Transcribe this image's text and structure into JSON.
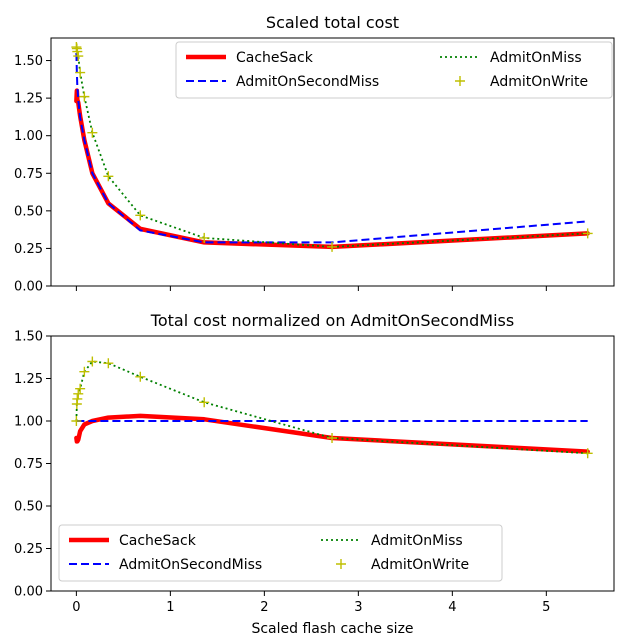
{
  "colors": {
    "cachesack": "#ff0000",
    "admitonsecondmiss": "#0000ff",
    "admitonmiss": "#008000",
    "admitonwrite": "#bfbf00"
  },
  "xlabel": "Scaled flash cache size",
  "chart_data": [
    {
      "type": "line",
      "title": "Scaled total cost",
      "xlabel": "",
      "ylabel": "",
      "xlim": [
        -0.27,
        5.72
      ],
      "ylim": [
        0,
        1.65
      ],
      "x_ticks": [
        0,
        1,
        2,
        3,
        4,
        5
      ],
      "y_ticks": [
        "0.00",
        "0.25",
        "0.50",
        "0.75",
        "1.00",
        "1.25",
        "1.50"
      ],
      "legend": {
        "position": "top-right",
        "columns": 2
      },
      "series": [
        {
          "name": "CacheSack",
          "style": "solid-thick",
          "x": [
            0,
            0.005,
            0.01,
            0.02,
            0.04,
            0.085,
            0.17,
            0.34,
            0.68,
            1.36,
            2.72,
            5.44
          ],
          "y": [
            1.23,
            1.3,
            1.24,
            1.22,
            1.13,
            0.97,
            0.75,
            0.55,
            0.38,
            0.29,
            0.26,
            0.35
          ]
        },
        {
          "name": "AdmitOnSecondMiss",
          "style": "dashed",
          "x": [
            0,
            0.005,
            0.01,
            0.02,
            0.04,
            0.085,
            0.17,
            0.34,
            0.68,
            1.36,
            2.72,
            5.44
          ],
          "y": [
            1.55,
            1.42,
            1.33,
            1.24,
            1.12,
            0.97,
            0.75,
            0.55,
            0.37,
            0.29,
            0.29,
            0.43
          ]
        },
        {
          "name": "AdmitOnMiss",
          "style": "dotted",
          "x": [
            0,
            0.005,
            0.01,
            0.02,
            0.04,
            0.085,
            0.17,
            0.34,
            0.68,
            1.36,
            2.72,
            5.44
          ],
          "y": [
            1.59,
            1.58,
            1.56,
            1.53,
            1.42,
            1.26,
            1.02,
            0.73,
            0.47,
            0.32,
            0.26,
            0.35
          ]
        },
        {
          "name": "AdmitOnWrite",
          "style": "plus-markers",
          "x": [
            0,
            0.005,
            0.01,
            0.02,
            0.04,
            0.085,
            0.17,
            0.34,
            0.68,
            1.36,
            2.72,
            5.44
          ],
          "y": [
            1.59,
            1.58,
            1.56,
            1.53,
            1.42,
            1.26,
            1.02,
            0.73,
            0.47,
            0.32,
            0.26,
            0.35
          ]
        }
      ]
    },
    {
      "type": "line",
      "title": "Total cost normalized on AdmitOnSecondMiss",
      "xlabel": "Scaled flash cache size",
      "ylabel": "",
      "xlim": [
        -0.27,
        5.72
      ],
      "ylim": [
        0,
        1.5
      ],
      "x_ticks": [
        0,
        1,
        2,
        3,
        4,
        5
      ],
      "y_ticks": [
        "0.00",
        "0.25",
        "0.50",
        "0.75",
        "1.00",
        "1.25",
        "1.50"
      ],
      "legend": {
        "position": "bottom-left",
        "columns": 2
      },
      "series": [
        {
          "name": "CacheSack",
          "style": "solid-thick",
          "x": [
            0,
            0.005,
            0.01,
            0.02,
            0.04,
            0.085,
            0.17,
            0.34,
            0.68,
            1.36,
            2.72,
            5.44
          ],
          "y": [
            0.9,
            0.88,
            0.88,
            0.89,
            0.94,
            0.98,
            1.0,
            1.02,
            1.03,
            1.01,
            0.9,
            0.82
          ]
        },
        {
          "name": "AdmitOnSecondMiss",
          "style": "dashed",
          "x": [
            0,
            5.44
          ],
          "y": [
            1.0,
            1.0
          ]
        },
        {
          "name": "AdmitOnMiss",
          "style": "dotted",
          "x": [
            0,
            0.005,
            0.01,
            0.02,
            0.04,
            0.085,
            0.17,
            0.34,
            0.68,
            1.36,
            2.72,
            5.44
          ],
          "y": [
            1.0,
            1.1,
            1.13,
            1.16,
            1.19,
            1.29,
            1.35,
            1.34,
            1.26,
            1.11,
            0.9,
            0.81
          ]
        },
        {
          "name": "AdmitOnWrite",
          "style": "plus-markers",
          "x": [
            0,
            0.005,
            0.01,
            0.02,
            0.04,
            0.085,
            0.17,
            0.34,
            0.68,
            1.36,
            2.72,
            5.44
          ],
          "y": [
            1.0,
            1.1,
            1.13,
            1.16,
            1.19,
            1.29,
            1.35,
            1.34,
            1.26,
            1.11,
            0.9,
            0.81
          ]
        }
      ]
    }
  ]
}
